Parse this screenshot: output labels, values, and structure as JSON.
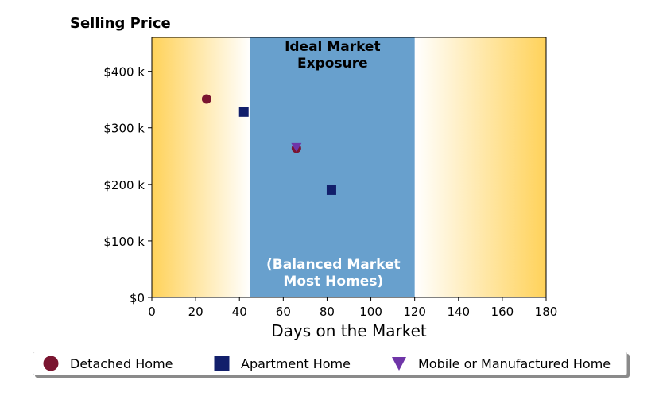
{
  "chart_data": {
    "type": "scatter",
    "title": "Selling Price",
    "xlabel": "Days on the Market",
    "ylabel": "",
    "xlim": [
      0,
      180
    ],
    "ylim": [
      0,
      460000
    ],
    "xticks": [
      0,
      20,
      40,
      60,
      80,
      100,
      120,
      140,
      160,
      180
    ],
    "yticks": [
      0,
      100000,
      200000,
      300000,
      400000
    ],
    "ytick_labels": [
      "$0",
      "$100 k",
      "$200 k",
      "$300 k",
      "$400 k"
    ],
    "grid": false,
    "background_gradient_colors": [
      "#ffd25a",
      "#ffffff"
    ],
    "band": {
      "x_range": [
        45,
        120
      ],
      "color": "#68a0cd",
      "label_top": "Ideal Market\nExposure",
      "label_bottom": "(Balanced Market\nMost Homes)"
    },
    "series": [
      {
        "name": "Detached Home",
        "marker": "circle",
        "color": "#7a1530",
        "points": [
          {
            "x": 25,
            "y": 351000
          },
          {
            "x": 66,
            "y": 264000
          }
        ]
      },
      {
        "name": "Apartment Home",
        "marker": "square",
        "color": "#121f6b",
        "points": [
          {
            "x": 42,
            "y": 328000
          },
          {
            "x": 82,
            "y": 190000
          }
        ]
      },
      {
        "name": "Mobile or Manufactured Home",
        "marker": "triangle-down",
        "color": "#6f35a8",
        "points": [
          {
            "x": 66,
            "y": 266000
          }
        ]
      }
    ],
    "legend_position": "bottom"
  }
}
